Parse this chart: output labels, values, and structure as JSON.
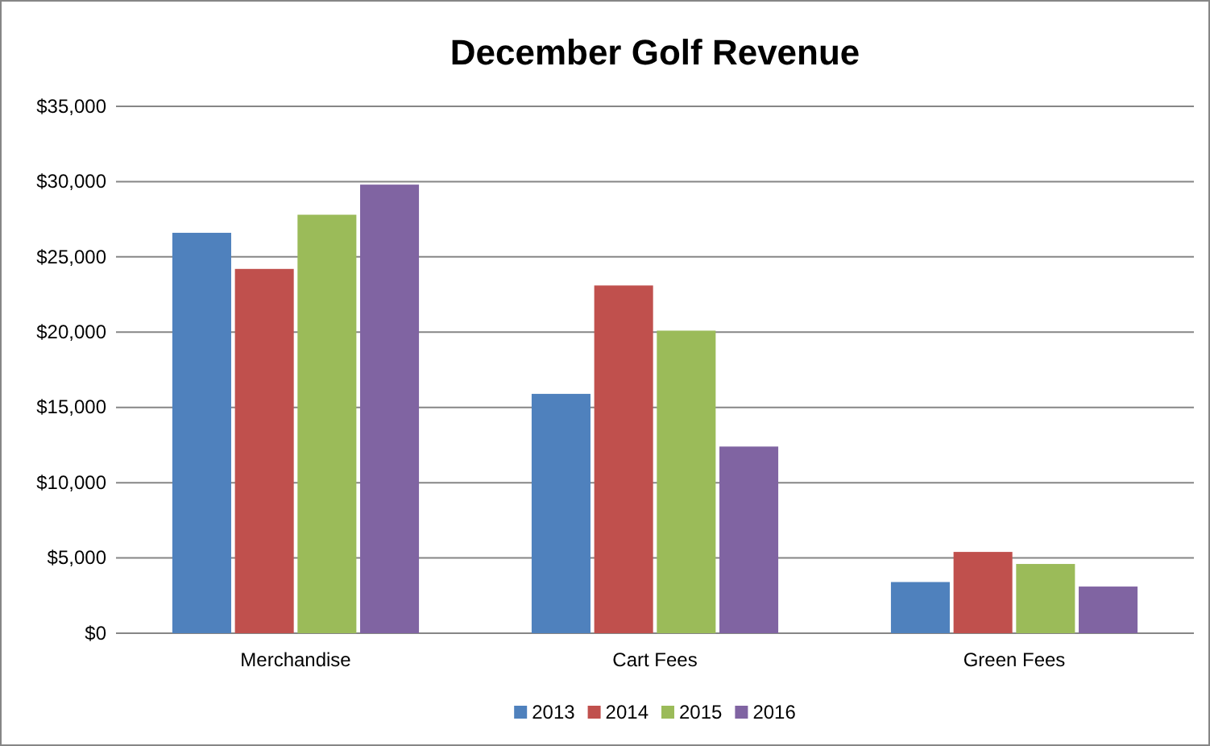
{
  "chart_data": {
    "type": "bar",
    "title": "December Golf Revenue",
    "categories": [
      "Merchandise",
      "Cart Fees",
      "Green Fees"
    ],
    "series": [
      {
        "name": "2013",
        "color": "#4f81bd",
        "values": [
          26600,
          15900,
          3400
        ]
      },
      {
        "name": "2014",
        "color": "#c0504d",
        "values": [
          24200,
          23100,
          5400
        ]
      },
      {
        "name": "2015",
        "color": "#9bbb59",
        "values": [
          27800,
          20100,
          4600
        ]
      },
      {
        "name": "2016",
        "color": "#8064a2",
        "values": [
          29800,
          12400,
          3100
        ]
      }
    ],
    "ylim": [
      0,
      35000
    ],
    "yticks": [
      {
        "value": 0,
        "label": "$0"
      },
      {
        "value": 5000,
        "label": "$5,000"
      },
      {
        "value": 10000,
        "label": "$10,000"
      },
      {
        "value": 15000,
        "label": "$15,000"
      },
      {
        "value": 20000,
        "label": "$20,000"
      },
      {
        "value": 25000,
        "label": "$25,000"
      },
      {
        "value": 30000,
        "label": "$30,000"
      },
      {
        "value": 35000,
        "label": "$35,000"
      }
    ],
    "grid": "y",
    "legend": "bottom"
  }
}
